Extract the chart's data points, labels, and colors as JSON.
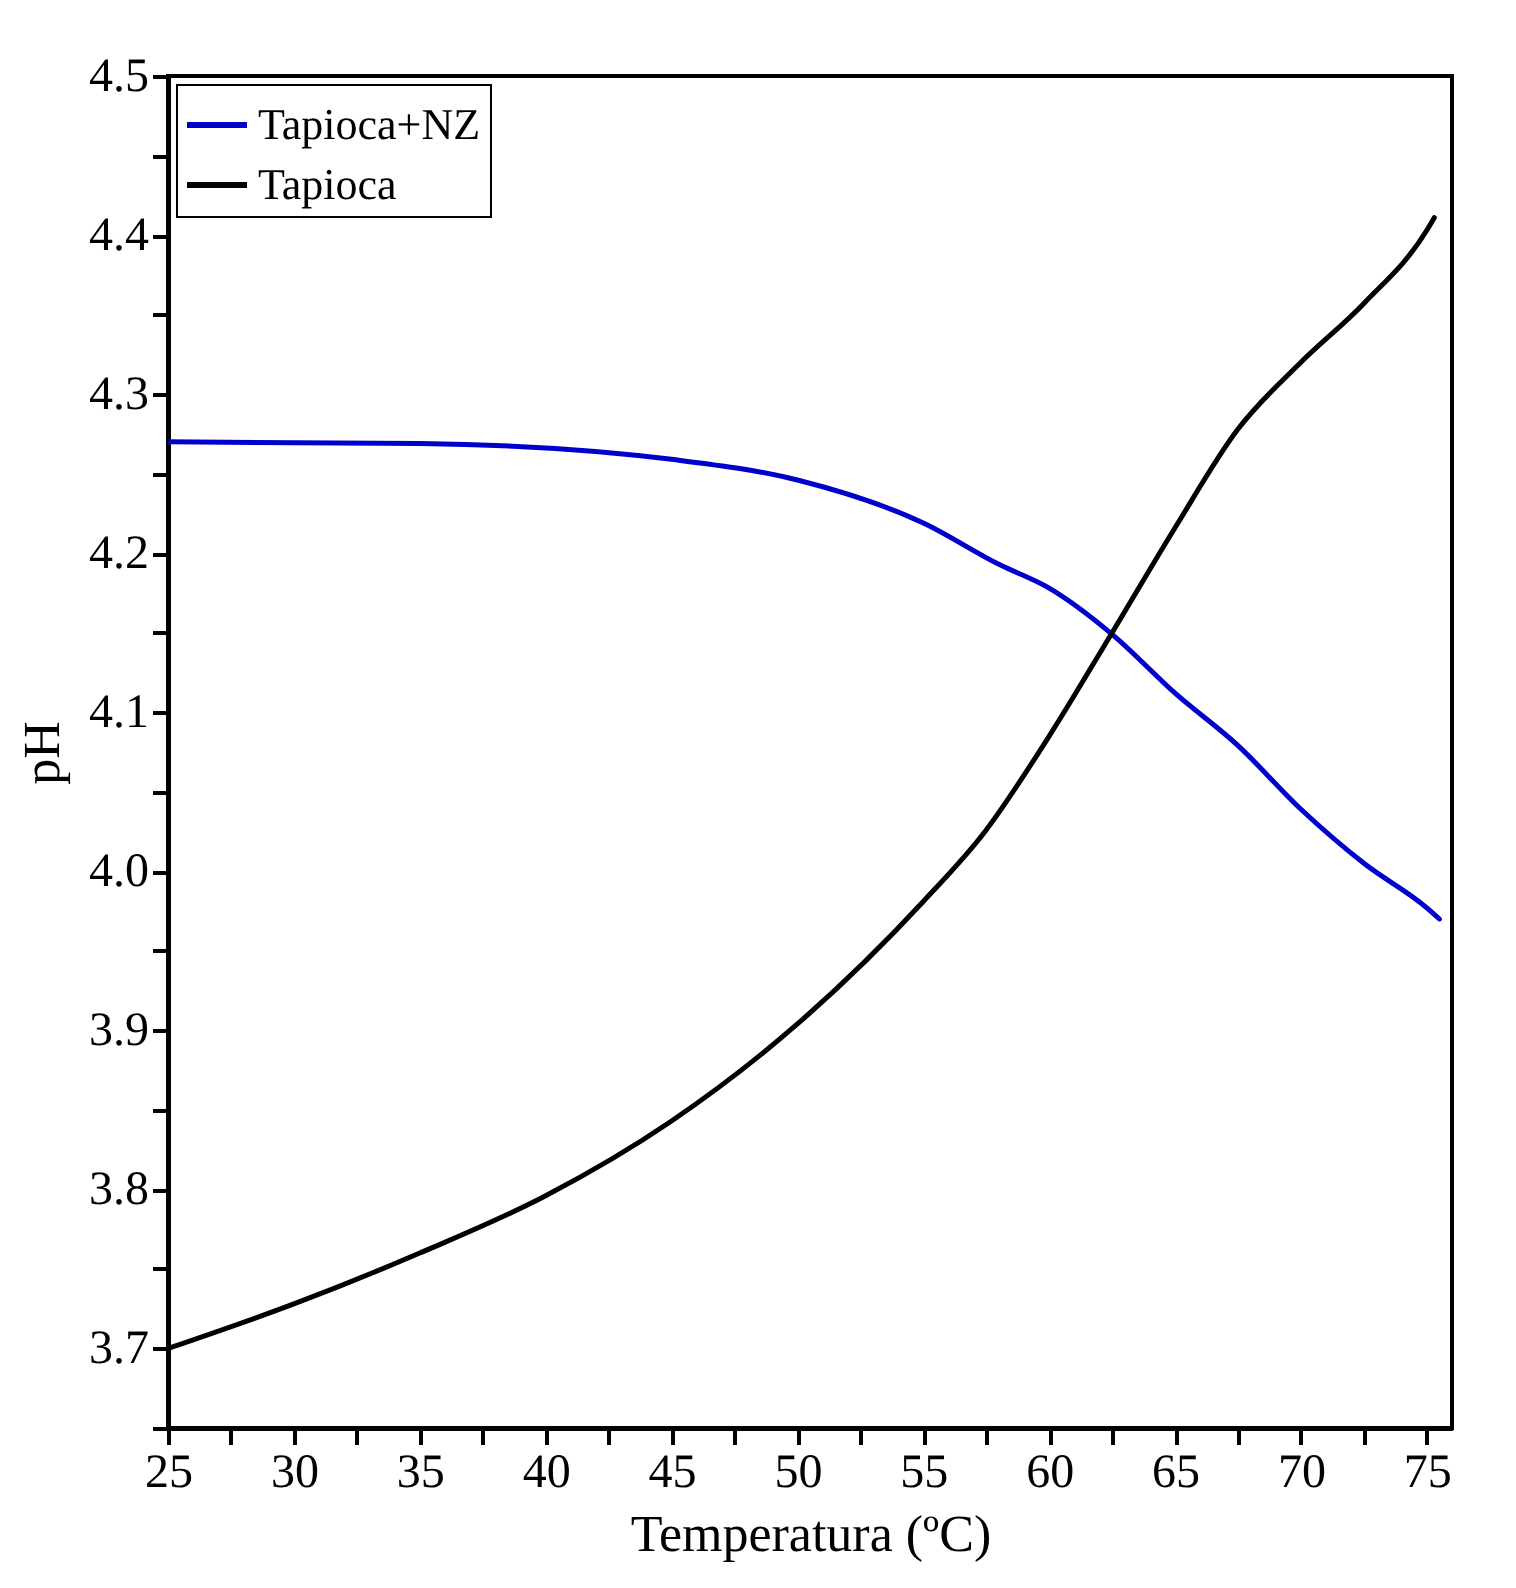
{
  "chart_data": {
    "type": "line",
    "xlabel": "Temperatura (ºC)",
    "ylabel": "pH",
    "xlim": [
      25,
      76
    ],
    "ylim": [
      3.65,
      4.5
    ],
    "xticks": [
      25,
      {
        "value": 27.5,
        "label": null
      },
      30,
      {
        "value": 32.5,
        "label": null
      },
      35,
      {
        "value": 37.5,
        "label": null
      },
      40,
      {
        "value": 42.5,
        "label": null
      },
      45,
      {
        "value": 47.5,
        "label": null
      },
      50,
      {
        "value": 52.5,
        "label": null
      },
      55,
      {
        "value": 57.5,
        "label": null
      },
      60,
      {
        "value": 62.5,
        "label": null
      },
      65,
      {
        "value": 67.5,
        "label": null
      },
      70,
      {
        "value": 72.5,
        "label": null
      },
      75
    ],
    "yticks": [
      {
        "value": 3.65,
        "label": null
      },
      {
        "value": 3.7,
        "label": "3.7"
      },
      {
        "value": 3.75,
        "label": null
      },
      {
        "value": 3.8,
        "label": "3.8"
      },
      {
        "value": 3.85,
        "label": null
      },
      {
        "value": 3.9,
        "label": "3.9"
      },
      {
        "value": 3.95,
        "label": null
      },
      {
        "value": 4.0,
        "label": "4.0"
      },
      {
        "value": 4.05,
        "label": null
      },
      {
        "value": 4.1,
        "label": "4.1"
      },
      {
        "value": 4.15,
        "label": null
      },
      {
        "value": 4.2,
        "label": "4.2"
      },
      {
        "value": 4.25,
        "label": null
      },
      {
        "value": 4.3,
        "label": "4.3"
      },
      {
        "value": 4.35,
        "label": null
      },
      {
        "value": 4.4,
        "label": "4.4"
      },
      {
        "value": 4.45,
        "label": null
      },
      {
        "value": 4.5,
        "label": "4.5"
      }
    ],
    "legend": "top left",
    "grid": false,
    "marker": "none",
    "line_style": "solid",
    "series": [
      {
        "name": "Tapioca+NZ",
        "color": "#0000cc",
        "x": [
          25,
          35,
          45,
          50,
          55,
          58,
          60,
          62.5,
          65,
          67.5,
          70,
          72.5,
          75,
          75.5
        ],
        "values": [
          4.27,
          4.269,
          4.259,
          4.246,
          4.219,
          4.193,
          4.178,
          4.149,
          4.112,
          4.079,
          4.039,
          4.005,
          3.977,
          3.97
        ]
      },
      {
        "name": "Tapioca",
        "color": "#000000",
        "x": [
          25,
          30,
          35,
          40,
          45,
          50,
          55,
          57.5,
          60,
          62.5,
          65,
          67.5,
          70,
          72.5,
          75,
          75.3
        ],
        "values": [
          3.7,
          3.728,
          3.76,
          3.796,
          3.843,
          3.904,
          3.981,
          4.026,
          4.085,
          4.15,
          4.216,
          4.278,
          4.32,
          4.357,
          4.403,
          4.411
        ]
      }
    ]
  }
}
